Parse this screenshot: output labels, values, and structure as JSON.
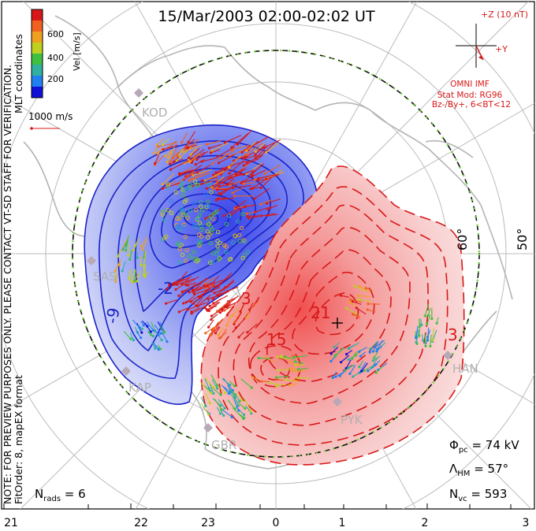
{
  "title": "15/Mar/2003 02:00-02:02 UT",
  "note": "NOTE: FOR PREVIEW PURPOSES ONLY. PLEASE CONTACT VT-SD STAFF FOR VERIFICATION.",
  "fitorder": "FitOrder: 8, mapEX format",
  "coords": "MLT coordinates",
  "colorbar": {
    "label": "Vel [m/s]",
    "ticks": [
      "200",
      "400",
      "600"
    ],
    "colors": [
      "#1010d8",
      "#2080f0",
      "#30b0a0",
      "#40c040",
      "#c0d020",
      "#f0a020",
      "#f06020",
      "#d81818"
    ]
  },
  "vector_ref": "1000 m/s",
  "imf": {
    "z_label": "+Z (10 nT)",
    "y_label": "+Y",
    "source": "OMNI IMF",
    "model": "Stat Mod: RG96",
    "cond": "Bz-/By+, 6<BT<12"
  },
  "stations": [
    "KOD",
    "SAS",
    "KAP",
    "GBR",
    "PYK",
    "HAN"
  ],
  "lat_labels": [
    "60°",
    "50°"
  ],
  "contours": {
    "neg": [
      "-2",
      "-9"
    ],
    "pos": [
      "3",
      "15",
      "21",
      "3"
    ]
  },
  "stats": {
    "phi_pc": "Φpc = 74 kV",
    "lambda_hm": "ΛHM = 57°",
    "n_vc": "Nvc = 593",
    "n_rads": "Nrads = 6"
  },
  "mlt_ticks": [
    "21",
    "22",
    "23",
    "0",
    "1",
    "2",
    "3"
  ]
}
